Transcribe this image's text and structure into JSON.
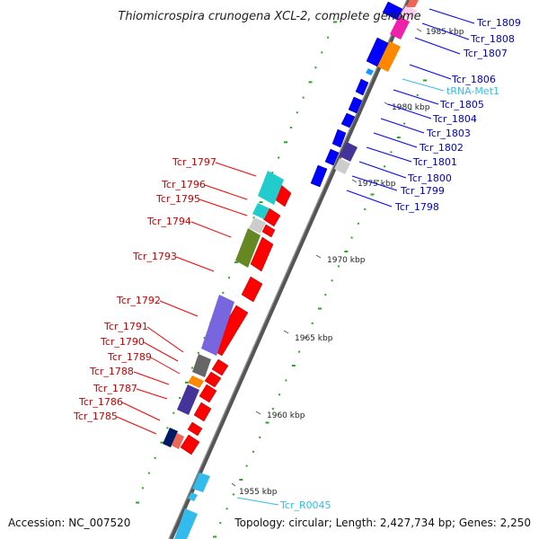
{
  "map": {
    "title": "Thiomicrospira crunogena XCL-2, complete genome",
    "accession": "Accession: NC_007520",
    "topology": "Topology: circular; Length: 2,427,734 bp; Genes: 2,250",
    "ticks": [
      "1955 kbp",
      "1960 kbp",
      "1965 kbp",
      "1970 kbp",
      "1975 kbp",
      "1980 kbp",
      "1985 kbp"
    ]
  },
  "colors": {
    "cds_reverse": "#ff0000",
    "cds_forward": "#0000ff",
    "rna_label": "#33bbee",
    "backbone": "#777777",
    "tick_marks": "#22aa22",
    "cog_cyan": "#22cccc",
    "cog_green": "#668822",
    "cog_purple": "#7766dd",
    "cog_grey": "#666666",
    "cog_orange": "#ff8800",
    "cog_pink": "#ee22aa",
    "cog_indigo": "#443399"
  },
  "labels_left": [
    "Tcr_1797",
    "Tcr_1796",
    "Tcr_1795",
    "Tcr_1794",
    "Tcr_1793",
    "Tcr_1792",
    "Tcr_1791",
    "Tcr_1790",
    "Tcr_1789",
    "Tcr_1788",
    "Tcr_1787",
    "Tcr_1786",
    "Tcr_1785"
  ],
  "labels_right": [
    "Tcr_1809",
    "Tcr_1808",
    "Tcr_1807",
    "Tcr_1806",
    "tRNA-Met1",
    "Tcr_1805",
    "Tcr_1804",
    "Tcr_1803",
    "Tcr_1802",
    "Tcr_1801",
    "Tcr_1800",
    "Tcr_1799",
    "Tcr_1798",
    "Tcr_R0045"
  ]
}
